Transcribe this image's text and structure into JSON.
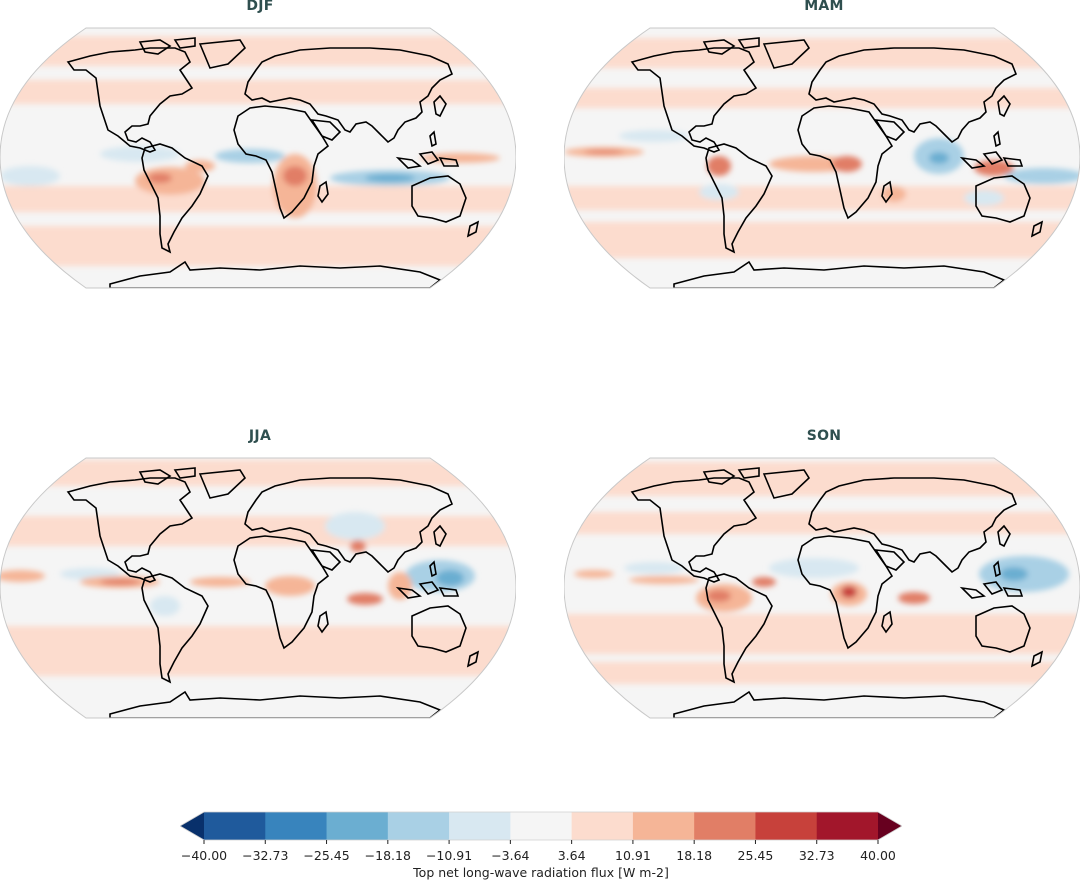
{
  "figure": {
    "panels": [
      {
        "id": "djf",
        "title": "DJF"
      },
      {
        "id": "mam",
        "title": "MAM"
      },
      {
        "id": "jja",
        "title": "JJA"
      },
      {
        "id": "son",
        "title": "SON"
      }
    ],
    "colorbar": {
      "label": "Top net long-wave radiation flux [W m-2]",
      "ticks": [
        "−40.00",
        "−32.73",
        "−25.45",
        "−18.18",
        "−10.91",
        "−3.64",
        "3.64",
        "10.91",
        "18.18",
        "25.45",
        "32.73",
        "40.00"
      ],
      "colors": [
        "#08306b",
        "#1f5a9c",
        "#3884bd",
        "#6baed1",
        "#a9d0e5",
        "#d8e8f1",
        "#f5f5f5",
        "#fcdcce",
        "#f5b597",
        "#e17e66",
        "#c7413b",
        "#a2162b",
        "#67001f"
      ],
      "extend": "both"
    }
  },
  "chart_data": [
    {
      "type": "heatmap",
      "title": "DJF",
      "projection": "Robinson",
      "variable": "Top net long-wave radiation flux",
      "units": "W m-2",
      "levels": [
        -40.0,
        -32.73,
        -25.45,
        -18.18,
        -10.91,
        -3.64,
        3.64,
        10.91,
        18.18,
        25.45,
        32.73,
        40.0
      ],
      "features": [
        {
          "region": "Southern Africa",
          "value_range": [
            10.91,
            25.45
          ],
          "sign": "positive"
        },
        {
          "region": "Amazon / Brazil",
          "value_range": [
            10.91,
            25.45
          ],
          "sign": "positive"
        },
        {
          "region": "Equatorial Atlantic",
          "value_range": [
            -18.18,
            -3.64
          ],
          "sign": "negative"
        },
        {
          "region": "South Indian Ocean (~10S)",
          "value_range": [
            -25.45,
            -10.91
          ],
          "sign": "negative"
        },
        {
          "region": "Maritime Continent / W Pacific",
          "value_range": [
            10.91,
            25.45
          ],
          "sign": "positive"
        },
        {
          "region": "Central Pacific ITCZ",
          "value_range": [
            -18.18,
            -3.64
          ],
          "sign": "negative"
        }
      ]
    },
    {
      "type": "heatmap",
      "title": "MAM",
      "projection": "Robinson",
      "variable": "Top net long-wave radiation flux",
      "units": "W m-2",
      "levels": [
        -40.0,
        -32.73,
        -25.45,
        -18.18,
        -10.91,
        -3.64,
        3.64,
        10.91,
        18.18,
        25.45,
        32.73,
        40.0
      ],
      "features": [
        {
          "region": "Central Africa",
          "value_range": [
            10.91,
            25.45
          ],
          "sign": "positive"
        },
        {
          "region": "Equatorial Atlantic",
          "value_range": [
            10.91,
            18.18
          ],
          "sign": "positive"
        },
        {
          "region": "Northwest Amazon",
          "value_range": [
            10.91,
            25.45
          ],
          "sign": "positive"
        },
        {
          "region": "Bay of Bengal / E Indian Ocean",
          "value_range": [
            -25.45,
            -10.91
          ],
          "sign": "negative"
        },
        {
          "region": "Indonesia",
          "value_range": [
            10.91,
            25.45
          ],
          "sign": "positive"
        },
        {
          "region": "Central Pacific ITCZ",
          "value_range": [
            10.91,
            25.45
          ],
          "sign": "positive"
        }
      ]
    },
    {
      "type": "heatmap",
      "title": "JJA",
      "projection": "Robinson",
      "variable": "Top net long-wave radiation flux",
      "units": "W m-2",
      "levels": [
        -40.0,
        -32.73,
        -25.45,
        -18.18,
        -10.91,
        -3.64,
        3.64,
        10.91,
        18.18,
        25.45,
        32.73,
        40.0
      ],
      "features": [
        {
          "region": "Eastern Pacific ITCZ",
          "value_range": [
            10.91,
            25.45
          ],
          "sign": "positive"
        },
        {
          "region": "Atlantic ITCZ",
          "value_range": [
            10.91,
            18.18
          ],
          "sign": "positive"
        },
        {
          "region": "Western Pacific / Philippines",
          "value_range": [
            -25.45,
            -10.91
          ],
          "sign": "negative"
        },
        {
          "region": "Tibetan Plateau / Central Asia",
          "value_range": [
            -18.18,
            -3.64
          ],
          "sign": "negative"
        },
        {
          "region": "Equatorial Indian Ocean",
          "value_range": [
            10.91,
            25.45
          ],
          "sign": "positive"
        },
        {
          "region": "Indochina",
          "value_range": [
            10.91,
            25.45
          ],
          "sign": "positive"
        }
      ]
    },
    {
      "type": "heatmap",
      "title": "SON",
      "projection": "Robinson",
      "variable": "Top net long-wave radiation flux",
      "units": "W m-2",
      "levels": [
        -40.0,
        -32.73,
        -25.45,
        -18.18,
        -10.91,
        -3.64,
        3.64,
        10.91,
        18.18,
        25.45,
        32.73,
        40.0
      ],
      "features": [
        {
          "region": "Central Africa (Congo)",
          "value_range": [
            18.18,
            32.73
          ],
          "sign": "positive"
        },
        {
          "region": "Western Amazon",
          "value_range": [
            18.18,
            32.73
          ],
          "sign": "positive"
        },
        {
          "region": "Western Pacific",
          "value_range": [
            -25.45,
            -10.91
          ],
          "sign": "negative"
        },
        {
          "region": "Sahel / Tropical N Atlantic",
          "value_range": [
            -18.18,
            -3.64
          ],
          "sign": "negative"
        },
        {
          "region": "Equatorial Indian Ocean",
          "value_range": [
            10.91,
            18.18
          ],
          "sign": "positive"
        },
        {
          "region": "Eastern Pacific",
          "value_range": [
            10.91,
            18.18
          ],
          "sign": "positive"
        }
      ]
    }
  ]
}
